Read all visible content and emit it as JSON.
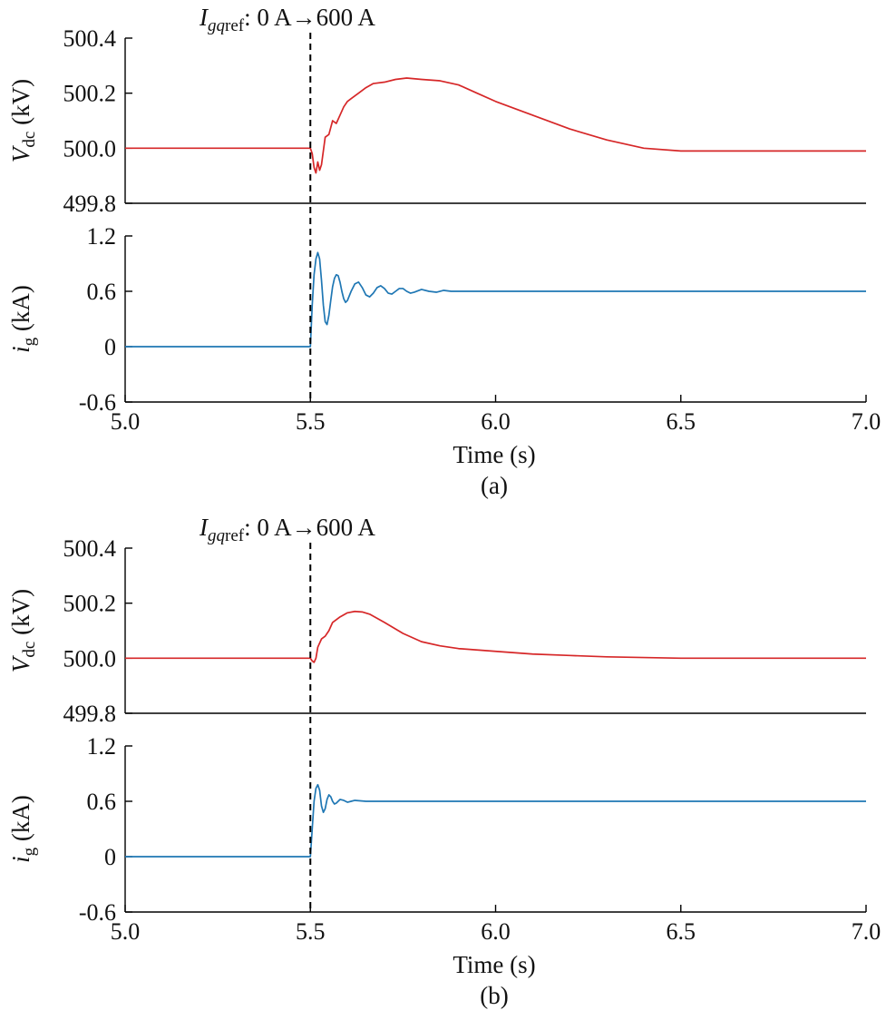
{
  "chart_data": [
    {
      "panel": "(a)",
      "type": "line",
      "annotation": {
        "symbol": "I",
        "subscript_italic": "gq",
        "subscript_rest": "ref",
        "text": ": 0 A→600 A",
        "x": 5.5
      },
      "xlabel": "Time (s)",
      "xlim": [
        5.0,
        7.0
      ],
      "xticks": [
        "5.0",
        "5.5",
        "6.0",
        "6.5",
        "7.0"
      ],
      "top": {
        "ylabel": {
          "symbol": "V",
          "subscript": "dc",
          "unit": "(kV)"
        },
        "ylim": [
          499.8,
          500.4
        ],
        "yticks": [
          "500.4",
          "500.2",
          "500.0",
          "499.8"
        ],
        "color": "#d62728",
        "series": [
          {
            "values": [
              [
                5.0,
                500.0
              ],
              [
                5.49,
                500.0
              ],
              [
                5.5,
                500.0
              ],
              [
                5.505,
                499.98
              ],
              [
                5.51,
                499.93
              ],
              [
                5.515,
                499.91
              ],
              [
                5.52,
                499.95
              ],
              [
                5.525,
                499.92
              ],
              [
                5.53,
                499.94
              ],
              [
                5.54,
                500.04
              ],
              [
                5.55,
                500.05
              ],
              [
                5.56,
                500.1
              ],
              [
                5.57,
                500.09
              ],
              [
                5.58,
                500.12
              ],
              [
                5.59,
                500.15
              ],
              [
                5.6,
                500.17
              ],
              [
                5.61,
                500.18
              ],
              [
                5.62,
                500.19
              ],
              [
                5.63,
                500.2
              ],
              [
                5.65,
                500.22
              ],
              [
                5.67,
                500.235
              ],
              [
                5.7,
                500.24
              ],
              [
                5.73,
                500.25
              ],
              [
                5.76,
                500.255
              ],
              [
                5.8,
                500.25
              ],
              [
                5.85,
                500.245
              ],
              [
                5.9,
                500.23
              ],
              [
                5.95,
                500.2
              ],
              [
                6.0,
                500.17
              ],
              [
                6.1,
                500.12
              ],
              [
                6.2,
                500.07
              ],
              [
                6.3,
                500.03
              ],
              [
                6.4,
                500.0
              ],
              [
                6.5,
                499.99
              ],
              [
                6.6,
                499.99
              ],
              [
                6.7,
                499.99
              ],
              [
                6.8,
                499.99
              ],
              [
                6.9,
                499.99
              ],
              [
                7.0,
                499.99
              ]
            ]
          }
        ]
      },
      "bottom": {
        "ylabel": {
          "symbol": "i",
          "subscript": "g",
          "unit": "(kA)"
        },
        "ylim": [
          -0.6,
          1.2
        ],
        "yticks": [
          "1.2",
          "0.6",
          "0",
          "-0.6"
        ],
        "color": "#1f77b4",
        "series": [
          {
            "values": [
              [
                5.0,
                0
              ],
              [
                5.497,
                0
              ],
              [
                5.5,
                0
              ],
              [
                5.505,
                0.45
              ],
              [
                5.51,
                0.78
              ],
              [
                5.515,
                0.95
              ],
              [
                5.52,
                1.02
              ],
              [
                5.525,
                0.95
              ],
              [
                5.53,
                0.72
              ],
              [
                5.535,
                0.45
              ],
              [
                5.54,
                0.27
              ],
              [
                5.545,
                0.24
              ],
              [
                5.55,
                0.34
              ],
              [
                5.555,
                0.5
              ],
              [
                5.56,
                0.65
              ],
              [
                5.565,
                0.74
              ],
              [
                5.57,
                0.78
              ],
              [
                5.575,
                0.77
              ],
              [
                5.58,
                0.7
              ],
              [
                5.585,
                0.6
              ],
              [
                5.59,
                0.52
              ],
              [
                5.595,
                0.48
              ],
              [
                5.6,
                0.5
              ],
              [
                5.61,
                0.6
              ],
              [
                5.62,
                0.68
              ],
              [
                5.63,
                0.7
              ],
              [
                5.64,
                0.64
              ],
              [
                5.65,
                0.56
              ],
              [
                5.66,
                0.54
              ],
              [
                5.67,
                0.58
              ],
              [
                5.68,
                0.64
              ],
              [
                5.69,
                0.66
              ],
              [
                5.7,
                0.63
              ],
              [
                5.71,
                0.58
              ],
              [
                5.72,
                0.57
              ],
              [
                5.73,
                0.6
              ],
              [
                5.74,
                0.63
              ],
              [
                5.75,
                0.63
              ],
              [
                5.76,
                0.6
              ],
              [
                5.77,
                0.58
              ],
              [
                5.78,
                0.59
              ],
              [
                5.8,
                0.62
              ],
              [
                5.82,
                0.6
              ],
              [
                5.84,
                0.59
              ],
              [
                5.86,
                0.61
              ],
              [
                5.88,
                0.6
              ],
              [
                5.9,
                0.6
              ],
              [
                6.0,
                0.6
              ],
              [
                6.5,
                0.6
              ],
              [
                7.0,
                0.6
              ]
            ]
          }
        ]
      }
    },
    {
      "panel": "(b)",
      "type": "line",
      "annotation": {
        "symbol": "I",
        "subscript_italic": "gq",
        "subscript_rest": "ref",
        "text": ": 0 A→600 A",
        "x": 5.5
      },
      "xlabel": "Time (s)",
      "xlim": [
        5.0,
        7.0
      ],
      "xticks": [
        "5.0",
        "5.5",
        "6.0",
        "6.5",
        "7.0"
      ],
      "top": {
        "ylabel": {
          "symbol": "V",
          "subscript": "dc",
          "unit": "(kV)"
        },
        "ylim": [
          499.8,
          500.4
        ],
        "yticks": [
          "500.4",
          "500.2",
          "500.0",
          "499.8"
        ],
        "color": "#d62728",
        "series": [
          {
            "values": [
              [
                5.0,
                500.0
              ],
              [
                5.49,
                500.0
              ],
              [
                5.5,
                500.0
              ],
              [
                5.505,
                499.99
              ],
              [
                5.51,
                499.985
              ],
              [
                5.515,
                500.0
              ],
              [
                5.52,
                500.04
              ],
              [
                5.53,
                500.07
              ],
              [
                5.54,
                500.08
              ],
              [
                5.55,
                500.1
              ],
              [
                5.56,
                500.13
              ],
              [
                5.58,
                500.15
              ],
              [
                5.6,
                500.165
              ],
              [
                5.62,
                500.17
              ],
              [
                5.64,
                500.168
              ],
              [
                5.66,
                500.16
              ],
              [
                5.7,
                500.13
              ],
              [
                5.75,
                500.09
              ],
              [
                5.8,
                500.06
              ],
              [
                5.85,
                500.045
              ],
              [
                5.9,
                500.035
              ],
              [
                6.0,
                500.025
              ],
              [
                6.1,
                500.015
              ],
              [
                6.2,
                500.01
              ],
              [
                6.3,
                500.005
              ],
              [
                6.5,
                500.0
              ],
              [
                7.0,
                500.0
              ]
            ]
          }
        ]
      },
      "bottom": {
        "ylabel": {
          "symbol": "i",
          "subscript": "g",
          "unit": "(kA)"
        },
        "ylim": [
          -0.6,
          1.2
        ],
        "yticks": [
          "1.2",
          "0.6",
          "0",
          "-0.6"
        ],
        "color": "#1f77b4",
        "series": [
          {
            "values": [
              [
                5.0,
                0
              ],
              [
                5.497,
                0
              ],
              [
                5.5,
                0
              ],
              [
                5.505,
                0.3
              ],
              [
                5.51,
                0.6
              ],
              [
                5.515,
                0.74
              ],
              [
                5.52,
                0.78
              ],
              [
                5.525,
                0.72
              ],
              [
                5.53,
                0.55
              ],
              [
                5.535,
                0.48
              ],
              [
                5.54,
                0.52
              ],
              [
                5.545,
                0.62
              ],
              [
                5.55,
                0.67
              ],
              [
                5.555,
                0.65
              ],
              [
                5.56,
                0.6
              ],
              [
                5.565,
                0.57
              ],
              [
                5.57,
                0.58
              ],
              [
                5.58,
                0.62
              ],
              [
                5.59,
                0.61
              ],
              [
                5.6,
                0.59
              ],
              [
                5.61,
                0.6
              ],
              [
                5.62,
                0.61
              ],
              [
                5.65,
                0.6
              ],
              [
                6.0,
                0.6
              ],
              [
                6.5,
                0.6
              ],
              [
                7.0,
                0.6
              ]
            ]
          }
        ]
      }
    }
  ]
}
